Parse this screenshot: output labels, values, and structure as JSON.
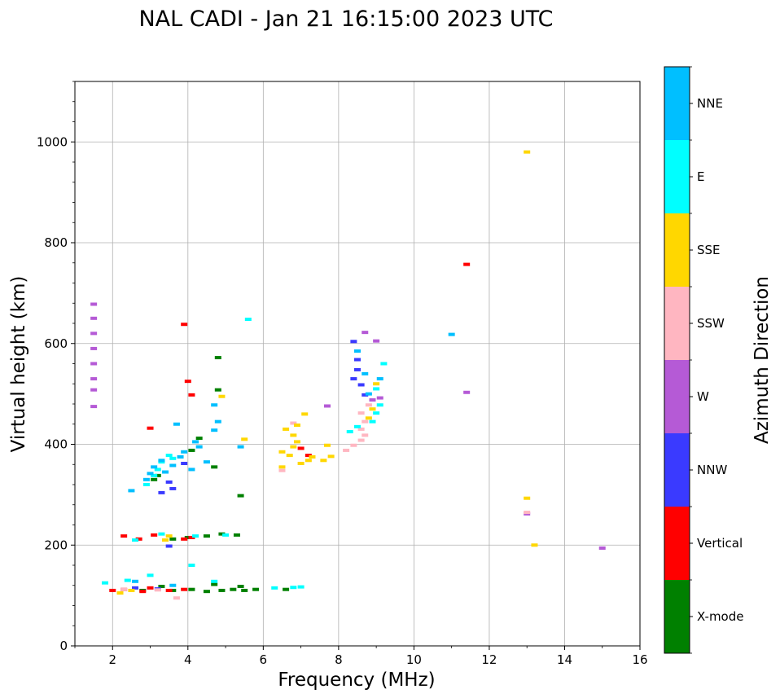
{
  "chart_data": {
    "type": "scatter",
    "title": "NAL CADI - Jan 21 16:15:00 2023 UTC",
    "xlabel": "Frequency (MHz)",
    "ylabel": "Virtual height (km)",
    "xlim": [
      1,
      16
    ],
    "ylim": [
      0,
      1120
    ],
    "xticks": [
      2,
      4,
      6,
      8,
      10,
      12,
      14,
      16
    ],
    "yticks": [
      0,
      200,
      400,
      600,
      800,
      1000
    ],
    "grid": true,
    "colorbar": {
      "title": "Azimuth Direction",
      "categories": [
        {
          "label": "X-mode",
          "color": "#008000"
        },
        {
          "label": "Vertical",
          "color": "#ff0000"
        },
        {
          "label": "NNW",
          "color": "#3a3aff"
        },
        {
          "label": "W",
          "color": "#b55ad6"
        },
        {
          "label": "SSW",
          "color": "#ffb6c1"
        },
        {
          "label": "SSE",
          "color": "#ffd700"
        },
        {
          "label": "E",
          "color": "#00ffff"
        },
        {
          "label": "NNE",
          "color": "#00bfff"
        }
      ]
    },
    "series": [
      {
        "name": "X-mode",
        "points": [
          [
            3.6,
            110
          ],
          [
            4.1,
            112
          ],
          [
            4.5,
            108
          ],
          [
            4.9,
            110
          ],
          [
            5.2,
            112
          ],
          [
            5.5,
            110
          ],
          [
            5.8,
            112
          ],
          [
            6.6,
            112
          ],
          [
            2.8,
            110
          ],
          [
            3.3,
            118
          ],
          [
            4.7,
            122
          ],
          [
            5.4,
            118
          ],
          [
            4.0,
            215
          ],
          [
            4.5,
            218
          ],
          [
            4.9,
            222
          ],
          [
            5.3,
            220
          ],
          [
            3.6,
            212
          ],
          [
            3.1,
            330
          ],
          [
            3.2,
            338
          ],
          [
            4.7,
            355
          ],
          [
            4.1,
            388
          ],
          [
            4.3,
            412
          ],
          [
            4.8,
            508
          ],
          [
            4.8,
            572
          ],
          [
            5.4,
            298
          ]
        ]
      },
      {
        "name": "Vertical",
        "points": [
          [
            2.0,
            110
          ],
          [
            2.3,
            112
          ],
          [
            2.8,
            108
          ],
          [
            3.0,
            115
          ],
          [
            3.5,
            110
          ],
          [
            3.9,
            112
          ],
          [
            2.3,
            218
          ],
          [
            2.7,
            212
          ],
          [
            3.1,
            220
          ],
          [
            3.9,
            212
          ],
          [
            4.1,
            215
          ],
          [
            3.0,
            432
          ],
          [
            4.0,
            525
          ],
          [
            4.1,
            498
          ],
          [
            3.9,
            638
          ],
          [
            7.2,
            378
          ],
          [
            7.0,
            392
          ],
          [
            11.4,
            757
          ]
        ]
      },
      {
        "name": "NNW",
        "points": [
          [
            3.3,
            304
          ],
          [
            3.6,
            312
          ],
          [
            3.5,
            325
          ],
          [
            3.9,
            362
          ],
          [
            2.6,
            115
          ],
          [
            3.2,
            113
          ],
          [
            8.4,
            604
          ],
          [
            8.5,
            568
          ],
          [
            8.5,
            548
          ],
          [
            8.6,
            518
          ],
          [
            8.7,
            498
          ],
          [
            8.4,
            530
          ],
          [
            3.5,
            198
          ]
        ]
      },
      {
        "name": "W",
        "points": [
          [
            1.5,
            678
          ],
          [
            1.5,
            650
          ],
          [
            1.5,
            620
          ],
          [
            1.5,
            590
          ],
          [
            1.5,
            560
          ],
          [
            1.5,
            530
          ],
          [
            1.5,
            508
          ],
          [
            1.5,
            475
          ],
          [
            8.7,
            622
          ],
          [
            9.0,
            605
          ],
          [
            9.1,
            492
          ],
          [
            8.9,
            488
          ],
          [
            7.7,
            476
          ],
          [
            11.4,
            503
          ],
          [
            13.0,
            262
          ],
          [
            15.0,
            194
          ]
        ]
      },
      {
        "name": "SSW",
        "points": [
          [
            8.2,
            388
          ],
          [
            8.4,
            398
          ],
          [
            8.6,
            408
          ],
          [
            8.7,
            418
          ],
          [
            8.6,
            430
          ],
          [
            8.7,
            445
          ],
          [
            8.6,
            462
          ],
          [
            8.8,
            478
          ],
          [
            2.3,
            112
          ],
          [
            3.2,
            111
          ],
          [
            6.5,
            348
          ],
          [
            6.8,
            442
          ],
          [
            3.7,
            95
          ],
          [
            13.0,
            265
          ]
        ]
      },
      {
        "name": "SSE",
        "points": [
          [
            6.5,
            355
          ],
          [
            6.5,
            385
          ],
          [
            6.7,
            378
          ],
          [
            6.8,
            395
          ],
          [
            6.9,
            405
          ],
          [
            6.8,
            418
          ],
          [
            6.6,
            430
          ],
          [
            6.9,
            438
          ],
          [
            7.0,
            362
          ],
          [
            7.2,
            368
          ],
          [
            7.3,
            375
          ],
          [
            7.6,
            368
          ],
          [
            7.8,
            376
          ],
          [
            7.7,
            398
          ],
          [
            7.1,
            460
          ],
          [
            8.8,
            452
          ],
          [
            8.9,
            470
          ],
          [
            9.0,
            520
          ],
          [
            2.2,
            105
          ],
          [
            2.5,
            110
          ],
          [
            3.4,
            210
          ],
          [
            3.5,
            218
          ],
          [
            5.5,
            410
          ],
          [
            4.9,
            495
          ],
          [
            13.0,
            980
          ],
          [
            13.0,
            293
          ],
          [
            13.2,
            200
          ]
        ]
      },
      {
        "name": "E",
        "points": [
          [
            3.2,
            350
          ],
          [
            3.3,
            365
          ],
          [
            3.5,
            378
          ],
          [
            3.1,
            338
          ],
          [
            3.6,
            372
          ],
          [
            2.9,
            320
          ],
          [
            2.6,
            210
          ],
          [
            3.3,
            222
          ],
          [
            4.2,
            218
          ],
          [
            5.0,
            220
          ],
          [
            6.3,
            115
          ],
          [
            6.8,
            116
          ],
          [
            7.0,
            117
          ],
          [
            5.6,
            648
          ],
          [
            8.3,
            425
          ],
          [
            8.5,
            435
          ],
          [
            8.9,
            445
          ],
          [
            9.0,
            462
          ],
          [
            9.1,
            478
          ],
          [
            9.0,
            510
          ],
          [
            9.2,
            560
          ],
          [
            1.8,
            125
          ],
          [
            2.4,
            130
          ],
          [
            3.0,
            140
          ],
          [
            4.1,
            160
          ],
          [
            4.7,
            128
          ]
        ]
      },
      {
        "name": "NNE",
        "points": [
          [
            2.9,
            330
          ],
          [
            3.0,
            342
          ],
          [
            3.1,
            355
          ],
          [
            3.3,
            368
          ],
          [
            3.4,
            345
          ],
          [
            3.6,
            358
          ],
          [
            3.8,
            375
          ],
          [
            3.9,
            385
          ],
          [
            4.2,
            405
          ],
          [
            4.3,
            395
          ],
          [
            4.5,
            365
          ],
          [
            4.1,
            350
          ],
          [
            3.7,
            440
          ],
          [
            4.7,
            428
          ],
          [
            4.8,
            445
          ],
          [
            4.7,
            478
          ],
          [
            2.5,
            308
          ],
          [
            5.4,
            395
          ],
          [
            8.5,
            585
          ],
          [
            8.7,
            540
          ],
          [
            8.8,
            500
          ],
          [
            9.1,
            530
          ],
          [
            11.0,
            618
          ],
          [
            2.6,
            128
          ],
          [
            3.6,
            120
          ]
        ]
      }
    ]
  }
}
